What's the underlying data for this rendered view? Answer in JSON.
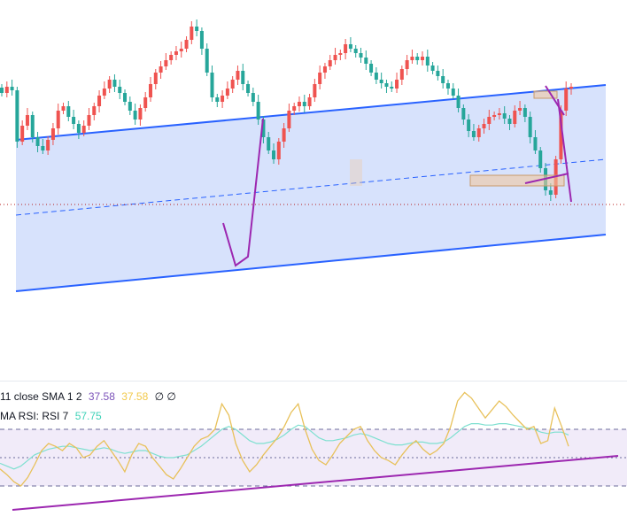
{
  "colors": {
    "up": "#26a69a",
    "down": "#ef5350",
    "channel_line": "#2962ff",
    "channel_fill": "#c9d8fb",
    "pattern": "#9c27b0",
    "box": "#f0c8a0",
    "dotted_level": "#b71c1c",
    "rsi_line": "#e8c15a",
    "rsi_ma": "#7ee0d0",
    "rsi_band_fill": "#ede6f8",
    "rsi_band_line": "#6b6b9a",
    "rsi_trend": "#9c27b0"
  },
  "legend": {
    "sma_label": "11 close SMA 1 2",
    "sma_value_1": "37.58",
    "sma_value_2": "37.58",
    "sma_symbols": "∅ ∅",
    "rsi_label": "MA RSI: RSI 7",
    "rsi_value": "57.75"
  },
  "chart_data": [
    {
      "type": "candlestick",
      "title": "",
      "xlabel": "",
      "ylabel": "",
      "grid": false,
      "close_series": [
        225,
        232,
        228,
        170,
        188,
        200,
        175,
        165,
        160,
        172,
        185,
        205,
        210,
        198,
        190,
        180,
        188,
        200,
        210,
        222,
        230,
        240,
        232,
        225,
        215,
        205,
        195,
        208,
        220,
        235,
        248,
        255,
        262,
        268,
        272,
        275,
        285,
        300,
        295,
        275,
        248,
        220,
        215,
        222,
        230,
        240,
        250,
        235,
        225,
        215,
        195,
        175,
        160,
        150,
        170,
        185,
        205,
        210,
        215,
        210,
        220,
        235,
        248,
        255,
        262,
        268,
        270,
        280,
        275,
        270,
        265,
        258,
        248,
        240,
        236,
        232,
        230,
        240,
        252,
        262,
        266,
        262,
        266,
        256,
        250,
        244,
        236,
        230,
        222,
        208,
        195,
        182,
        175,
        185,
        190,
        198,
        200,
        202,
        196,
        190,
        205,
        208,
        198,
        175,
        160,
        140,
        115,
        110,
        150,
        205,
        230,
        232
      ],
      "highlighted_boxes": 2,
      "drawn_patterns": 3
    },
    {
      "type": "line",
      "title": "",
      "series": [
        {
          "values": [
            42,
            38,
            33,
            30,
            36,
            45,
            55,
            60,
            58,
            55,
            60,
            57,
            50,
            52,
            58,
            62,
            55,
            48,
            40,
            52,
            60,
            58,
            50,
            44,
            38,
            35,
            42,
            50,
            58,
            63,
            65,
            70,
            88,
            80,
            60,
            48,
            40,
            45,
            52,
            58,
            64,
            72,
            82,
            88,
            70,
            56,
            48,
            45,
            52,
            60,
            65,
            70,
            72,
            62,
            55,
            50,
            48,
            45,
            52,
            58,
            62,
            56,
            52,
            55,
            60,
            72,
            90,
            96,
            92,
            85,
            78,
            84,
            90,
            86,
            80,
            75,
            70,
            72,
            60,
            62,
            85,
            72,
            58
          ]
        },
        {
          "values": [
            46,
            44,
            42,
            44,
            48,
            52,
            54,
            56,
            57,
            58,
            58,
            57,
            56,
            55,
            56,
            57,
            56,
            54,
            53,
            54,
            55,
            55,
            53,
            51,
            50,
            50,
            51,
            52,
            55,
            58,
            62,
            66,
            70,
            72,
            70,
            66,
            62,
            60,
            60,
            61,
            63,
            66,
            70,
            73,
            72,
            68,
            64,
            62,
            62,
            63,
            64,
            66,
            67,
            66,
            64,
            62,
            60,
            59,
            59,
            60,
            61,
            61,
            60,
            60,
            61,
            64,
            68,
            72,
            74,
            74,
            73,
            73,
            74,
            74,
            73,
            72,
            71,
            70,
            68,
            67,
            68,
            68,
            66
          ]
        }
      ],
      "ylim": [
        0,
        100
      ],
      "bands": [
        70,
        50,
        30
      ]
    }
  ]
}
